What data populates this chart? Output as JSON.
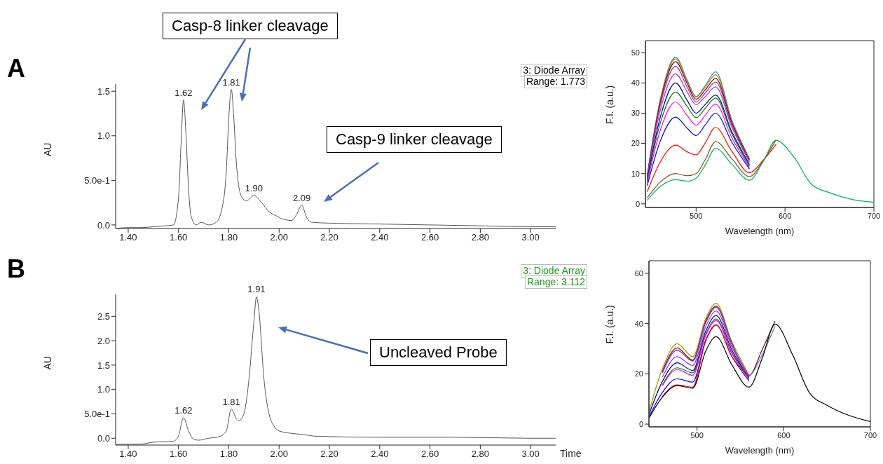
{
  "chart_data": [
    {
      "type": "line",
      "color": "#555555",
      "ylabel": "AU",
      "x": [
        1.35,
        1.4,
        1.45,
        1.5,
        1.55,
        1.58,
        1.6,
        1.61,
        1.62,
        1.63,
        1.64,
        1.65,
        1.67,
        1.69,
        1.72,
        1.75,
        1.77,
        1.79,
        1.8,
        1.81,
        1.82,
        1.83,
        1.85,
        1.87,
        1.9,
        1.93,
        1.96,
        1.99,
        2.02,
        2.05,
        2.07,
        2.09,
        2.11,
        2.13,
        2.2,
        2.4,
        2.6,
        2.8,
        3.0,
        3.1
      ],
      "values": [
        -0.04,
        -0.03,
        -0.03,
        -0.02,
        -0.01,
        0.0,
        0.3,
        0.9,
        1.4,
        1.0,
        0.4,
        0.1,
        0.0,
        0.03,
        0.0,
        0.03,
        0.15,
        0.6,
        1.2,
        1.52,
        1.2,
        0.7,
        0.32,
        0.27,
        0.33,
        0.25,
        0.15,
        0.1,
        0.06,
        0.05,
        0.12,
        0.22,
        0.08,
        0.03,
        0.02,
        0.01,
        0.0,
        -0.01,
        -0.02,
        -0.02
      ],
      "xlim": [
        1.35,
        3.1
      ],
      "xticks": [
        {
          "value": 1.4,
          "label": "1.40"
        },
        {
          "value": 1.6,
          "label": "1.60"
        },
        {
          "value": 1.8,
          "label": "1.80"
        },
        {
          "value": 2.0,
          "label": "2.00"
        },
        {
          "value": 2.2,
          "label": "2.20"
        },
        {
          "value": 2.4,
          "label": "2.40"
        },
        {
          "value": 2.6,
          "label": "2.60"
        },
        {
          "value": 2.8,
          "label": "2.80"
        },
        {
          "value": 3.0,
          "label": "3.00"
        }
      ],
      "ylim": [
        -0.04,
        1.58
      ],
      "yticks": [
        {
          "value": 0,
          "label": "0.0"
        },
        {
          "value": 0.5,
          "label": "5.0e-1"
        },
        {
          "value": 1,
          "label": "1.0"
        },
        1.5
      ],
      "annotations": [
        "A",
        "Casp-8 linker cleavage",
        "Casp-9 linker cleavage",
        "3: Diode Array",
        "Range: 1.773",
        {
          "text": "1.62",
          "x": 1.62,
          "y": 1.4
        },
        {
          "text": "1.81",
          "x": 1.81,
          "y": 1.52
        },
        {
          "text": "1.90",
          "x": 1.9,
          "y": 0.33
        },
        {
          "text": "2.09",
          "x": 2.09,
          "y": 0.22
        }
      ]
    },
    {
      "type": "line",
      "xlabel": "Wavelength (nm)",
      "ylabel": "F.I. (a.u.)",
      "xlim": [
        443,
        700
      ],
      "xticks": [
        500,
        600,
        700
      ],
      "ylim": [
        -1.2,
        54
      ],
      "yticks": [
        0,
        10,
        20,
        30,
        40,
        50
      ],
      "x": [
        445,
        460,
        477,
        490,
        500,
        510,
        522,
        540,
        560,
        575,
        590,
        610,
        630,
        650,
        675,
        700
      ],
      "series": [
        {
          "color": "#4f81bd",
          "values": [
            9.5,
            35,
            48.5,
            41,
            35.5,
            39,
            43.7,
            28,
            15,
            null,
            null,
            null,
            null,
            null,
            null,
            null
          ]
        },
        {
          "color": "#999900",
          "values": [
            9.4,
            34.6,
            48,
            40.5,
            35.3,
            38.5,
            42.7,
            27.5,
            14.8,
            null,
            null,
            null,
            null,
            null,
            null,
            null
          ]
        },
        {
          "color": "#8b0000",
          "values": [
            9.2,
            34,
            47,
            39.8,
            34.6,
            37.6,
            41.5,
            27,
            14.5,
            null,
            null,
            null,
            null,
            null,
            null,
            null
          ]
        },
        {
          "color": "#993399",
          "values": [
            9,
            33,
            45.5,
            38.6,
            33.7,
            36.6,
            40.3,
            26.3,
            14.2,
            null,
            null,
            null,
            null,
            null,
            null,
            null
          ]
        },
        {
          "color": "#9933ff",
          "values": [
            8.6,
            31.3,
            43,
            37,
            32.8,
            35.4,
            38.7,
            25.5,
            13.8,
            null,
            null,
            null,
            null,
            null,
            null,
            null
          ]
        },
        {
          "color": "#000080",
          "values": [
            8,
            29,
            40,
            34.2,
            30,
            32.8,
            36,
            24,
            13,
            null,
            null,
            null,
            null,
            null,
            null,
            null
          ]
        },
        {
          "color": "#008000",
          "values": [
            7.6,
            27,
            37,
            32.2,
            28.5,
            31.5,
            35,
            23.3,
            12.5,
            null,
            null,
            null,
            null,
            null,
            null,
            null
          ]
        },
        {
          "color": "#ff00ff",
          "values": [
            7,
            24.6,
            33.7,
            29.2,
            26,
            29.2,
            33,
            22,
            12,
            null,
            null,
            null,
            null,
            null,
            null,
            null
          ]
        },
        {
          "color": "#0000ff",
          "values": [
            6,
            21,
            28.7,
            25,
            22.6,
            26,
            30,
            20.5,
            11.5,
            null,
            null,
            null,
            null,
            null,
            null,
            null
          ]
        },
        {
          "color": "#ff0000",
          "values": [
            4,
            14,
            19.4,
            17.2,
            16.2,
            20,
            25.3,
            17.5,
            10.3,
            14.3,
            19.7,
            null,
            null,
            null,
            null,
            null
          ]
        },
        {
          "color": "#7f4f1f",
          "values": [
            2,
            7.3,
            10,
            9.3,
            10,
            14.5,
            20.6,
            15,
            9,
            14,
            21.2,
            null,
            null,
            null,
            null,
            null
          ]
        },
        {
          "color": "#00b050",
          "values": [
            1.2,
            5.8,
            8,
            7.5,
            8.5,
            12.7,
            18.4,
            13.2,
            7.8,
            13.8,
            21,
            15.5,
            6.4,
            3.7,
            1.5,
            0.5
          ]
        }
      ]
    },
    {
      "type": "line",
      "color": "#555555",
      "xlabel": "Time",
      "ylabel": "AU",
      "x": [
        1.35,
        1.4,
        1.45,
        1.5,
        1.55,
        1.58,
        1.6,
        1.62,
        1.64,
        1.66,
        1.68,
        1.72,
        1.76,
        1.79,
        1.81,
        1.83,
        1.84,
        1.86,
        1.88,
        1.9,
        1.91,
        1.92,
        1.94,
        1.96,
        1.98,
        2.0,
        2.05,
        2.09,
        2.15,
        2.4,
        2.7,
        3.0,
        3.1
      ],
      "values": [
        -0.13,
        -0.12,
        -0.12,
        -0.08,
        -0.07,
        -0.06,
        0.05,
        0.42,
        0.15,
        -0.02,
        -0.04,
        0.0,
        0.03,
        0.15,
        0.6,
        0.4,
        0.36,
        0.5,
        1.2,
        2.4,
        2.9,
        2.6,
        1.2,
        0.5,
        0.25,
        0.15,
        0.1,
        0.08,
        0.04,
        0.02,
        0.02,
        0.0,
        0.0
      ],
      "xlim": [
        1.35,
        3.1
      ],
      "xticks": [
        {
          "value": 1.4,
          "label": "1.40"
        },
        {
          "value": 1.6,
          "label": "1.60"
        },
        {
          "value": 1.8,
          "label": "1.80"
        },
        {
          "value": 2.0,
          "label": "2.00"
        },
        {
          "value": 2.2,
          "label": "2.20"
        },
        {
          "value": 2.4,
          "label": "2.40"
        },
        {
          "value": 2.6,
          "label": "2.60"
        },
        {
          "value": 2.8,
          "label": "2.80"
        },
        {
          "value": 3.0,
          "label": "3.00"
        }
      ],
      "ylim": [
        -0.14,
        2.95
      ],
      "yticks": [
        {
          "value": 0,
          "label": "0.0"
        },
        {
          "value": 0.5,
          "label": "5.0e-1"
        },
        {
          "value": 1,
          "label": "1.0"
        },
        1.5,
        {
          "value": 2,
          "label": "2.0"
        },
        2.5
      ],
      "annotations": [
        "B",
        "Uncleaved Probe",
        "3: Diode Array",
        "Range: 3.112",
        {
          "text": "1.62",
          "x": 1.62,
          "y": 0.42
        },
        {
          "text": "1.81",
          "x": 1.81,
          "y": 0.6
        },
        {
          "text": "1.91",
          "x": 1.91,
          "y": 2.9
        }
      ]
    },
    {
      "type": "line",
      "xlabel": "Wavelength (nm)",
      "ylabel": "F.I. (a.u.)",
      "xlim": [
        444.5,
        700
      ],
      "xticks": [
        500,
        600,
        700
      ],
      "ylim": [
        -1.1,
        65
      ],
      "yticks": [
        0,
        20,
        40,
        60
      ],
      "x": [
        445,
        460,
        477,
        495,
        510,
        522,
        540,
        560,
        575,
        590,
        610,
        630,
        650,
        675,
        700
      ],
      "series": [
        {
          "color": "#999900",
          "values": [
            5.5,
            22,
            32,
            26.8,
            42,
            48,
            33,
            19.5,
            null,
            null,
            null,
            null,
            null,
            null,
            null
          ]
        },
        {
          "color": "#8b0000",
          "values": [
            null,
            21,
            30.3,
            25.5,
            41,
            47,
            32.3,
            19.3,
            29.5,
            41,
            null,
            null,
            null,
            null,
            null
          ]
        },
        {
          "color": "#4f81bd",
          "values": [
            null,
            20.5,
            29.5,
            25,
            40.5,
            46.7,
            32,
            19.5,
            27.5,
            39,
            null,
            null,
            null,
            null,
            null
          ]
        },
        {
          "color": "#993399",
          "values": [
            null,
            20.3,
            29.3,
            25.2,
            40.3,
            46.5,
            31.8,
            19,
            null,
            null,
            null,
            null,
            null,
            null,
            null
          ]
        },
        {
          "color": "#9933ff",
          "values": [
            null,
            18.6,
            26.8,
            23.3,
            38.8,
            45,
            30.8,
            18.7,
            null,
            null,
            null,
            null,
            null,
            null,
            null
          ]
        },
        {
          "color": "#000080",
          "values": [
            4.2,
            17,
            24.4,
            21.3,
            37,
            43.2,
            29.6,
            18.2,
            null,
            null,
            null,
            null,
            null,
            null,
            null
          ]
        },
        {
          "color": "#008000",
          "values": [
            null,
            15.6,
            22.4,
            20.4,
            35.8,
            41.8,
            28.6,
            18.3,
            null,
            null,
            null,
            null,
            null,
            null,
            null
          ]
        },
        {
          "color": "#ff00ff",
          "values": [
            null,
            15.2,
            21.7,
            19.4,
            35.2,
            41.2,
            28.2,
            17.8,
            null,
            null,
            null,
            null,
            null,
            null,
            null
          ]
        },
        {
          "color": "#0000ff",
          "values": [
            3.1,
            12.6,
            18,
            16.7,
            33.5,
            39.5,
            27,
            17.2,
            null,
            null,
            null,
            null,
            null,
            null,
            null
          ]
        },
        {
          "color": "#ff0000",
          "values": [
            null,
            11,
            15.6,
            14.7,
            33,
            39.4,
            27,
            18.7,
            null,
            null,
            null,
            null,
            null,
            null,
            null
          ]
        },
        {
          "color": "#000000",
          "values": [
            2.6,
            10.7,
            15.3,
            14.3,
            29,
            34.8,
            23.7,
            14.7,
            26,
            39.8,
            27.8,
            12.3,
            7.5,
            3.5,
            1
          ]
        }
      ]
    }
  ]
}
